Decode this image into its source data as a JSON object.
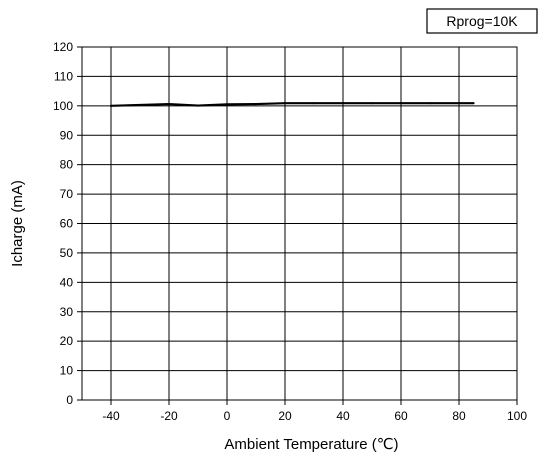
{
  "chart_data": {
    "type": "line",
    "title": "",
    "xlabel": "Ambient Temperature (℃)",
    "ylabel": "Icharge (mA)",
    "annotation": "Rprog=10K",
    "xlim": [
      -50,
      100
    ],
    "ylim": [
      0,
      120
    ],
    "x_ticks": [
      -40,
      -20,
      0,
      20,
      40,
      60,
      80,
      100
    ],
    "y_ticks": [
      0,
      10,
      20,
      30,
      40,
      50,
      60,
      70,
      80,
      90,
      100,
      110,
      120
    ],
    "grid": true,
    "series": [
      {
        "x": [
          -40,
          -30,
          -20,
          -10,
          0,
          10,
          20,
          30,
          40,
          50,
          60,
          70,
          80,
          85
        ],
        "y": [
          100.0,
          100.3,
          100.6,
          100.1,
          100.5,
          100.6,
          100.9,
          100.9,
          100.9,
          100.9,
          100.9,
          100.9,
          100.9,
          100.9
        ],
        "color": "#000000"
      }
    ]
  }
}
